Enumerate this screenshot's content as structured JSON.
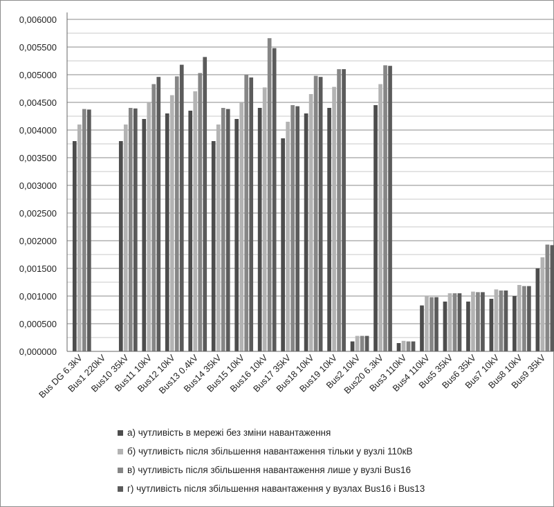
{
  "chart_data": {
    "type": "bar",
    "ylim": [
      0,
      0.006
    ],
    "yticks": [
      "0,000000",
      "0,000500",
      "0,001000",
      "0,001500",
      "0,002000",
      "0,002500",
      "0,003000",
      "0,003500",
      "0,004000",
      "0,004500",
      "0,005000",
      "0,005500",
      "0,006000"
    ],
    "grid": true,
    "legend_position": "bottom",
    "categories": [
      "Bus DG 6.3kV",
      "Bus1 220kV",
      "Bus10 35kV",
      "Bus11 10kV",
      "Bus12 10kV",
      "Bus13 0.4kV",
      "Bus14 35kV",
      "Bus15 10kV",
      "Bus16 10kV",
      "Bus17 35kV",
      "Bus18 10kV",
      "Bus19 10kV",
      "Bus2 10kV",
      "Bus20 6.3kV",
      "Bus3 110kV",
      "Bus4 110kV",
      "Bus5 35kV",
      "Bus6 35kV",
      "Bus7 10kV",
      "Bus8 10kV",
      "Bus9 35kV"
    ],
    "series": [
      {
        "name": "а) чутливість в мережі без зміни навантаження",
        "color": "#4d4d4d",
        "values": [
          0.0038,
          0,
          0.0038,
          0.0042,
          0.0043,
          0.00435,
          0.0038,
          0.0042,
          0.0044,
          0.00385,
          0.0043,
          0.0044,
          0.00018,
          0.00445,
          0.00015,
          0.00083,
          0.0009,
          0.0009,
          0.00095,
          0.001,
          0.0015
        ]
      },
      {
        "name": "б) чутливість після збільшення навантаження тільки у вузлі 110кВ",
        "color": "#b3b3b3",
        "values": [
          0.0041,
          0,
          0.0041,
          0.0045,
          0.00463,
          0.0047,
          0.0041,
          0.0045,
          0.00477,
          0.00415,
          0.00465,
          0.00478,
          0.00028,
          0.00483,
          0.00019,
          0.001,
          0.00105,
          0.00108,
          0.00112,
          0.0012,
          0.0017
        ]
      },
      {
        "name": "в) чутливість після збільшення навантаження лише у вузлі Bus16",
        "color": "#868686",
        "values": [
          0.00438,
          0,
          0.0044,
          0.00483,
          0.00497,
          0.00503,
          0.0044,
          0.005,
          0.00566,
          0.00445,
          0.00498,
          0.0051,
          0.00028,
          0.00517,
          0.00018,
          0.00098,
          0.00105,
          0.00107,
          0.0011,
          0.00118,
          0.00193
        ]
      },
      {
        "name": "г) чутливість після збільшення навантаження у вузлах Bus16 і Bus13",
        "color": "#5b5b5b",
        "values": [
          0.00437,
          0,
          0.00439,
          0.00496,
          0.00518,
          0.00532,
          0.00438,
          0.00495,
          0.00548,
          0.00443,
          0.00496,
          0.0051,
          0.00028,
          0.00516,
          0.00018,
          0.00098,
          0.00105,
          0.00107,
          0.0011,
          0.00118,
          0.00192
        ]
      }
    ]
  }
}
